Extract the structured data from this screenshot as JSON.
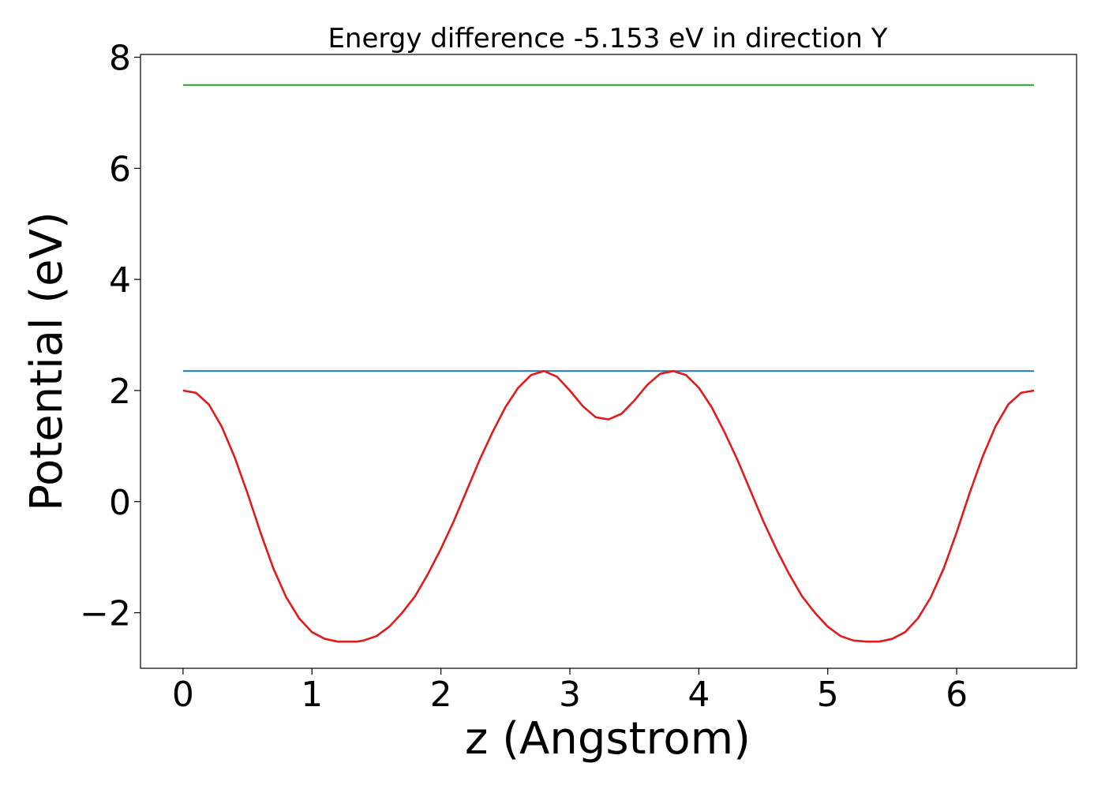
{
  "chart_data": {
    "type": "line",
    "title": "Energy difference -5.153 eV in direction Y",
    "xlabel": "z (Angstrom)",
    "ylabel": "Potential (eV)",
    "xlim": [
      -0.33,
      6.93
    ],
    "ylim": [
      -3.0,
      8.05
    ],
    "x_ticks": [
      0,
      1,
      2,
      3,
      4,
      5,
      6
    ],
    "x_tick_labels": [
      "0",
      "1",
      "2",
      "3",
      "4",
      "5",
      "6"
    ],
    "y_ticks": [
      -2,
      0,
      2,
      4,
      6,
      8
    ],
    "y_tick_labels": [
      "−2",
      "0",
      "2",
      "4",
      "6",
      "8"
    ],
    "grid": false,
    "legend": "none",
    "series": [
      {
        "color": "#2ca02c",
        "x": [
          0,
          6.6
        ],
        "y": [
          7.5,
          7.5
        ]
      },
      {
        "color": "#1f77b4",
        "x": [
          0,
          6.6
        ],
        "y": [
          2.35,
          2.35
        ]
      },
      {
        "color": "#e31a1c",
        "x": [
          0,
          0.1,
          0.2,
          0.3,
          0.4,
          0.5,
          0.6,
          0.7,
          0.8,
          0.9,
          1.0,
          1.1,
          1.2,
          1.3,
          1.35,
          1.4,
          1.5,
          1.6,
          1.7,
          1.8,
          1.9,
          2.0,
          2.1,
          2.2,
          2.3,
          2.4,
          2.5,
          2.6,
          2.7,
          2.8,
          2.9,
          3.0,
          3.1,
          3.2,
          3.3,
          3.4,
          3.5,
          3.6,
          3.7,
          3.8,
          3.9,
          4.0,
          4.1,
          4.2,
          4.3,
          4.4,
          4.5,
          4.6,
          4.7,
          4.8,
          4.9,
          5.0,
          5.1,
          5.2,
          5.3,
          5.35,
          5.4,
          5.5,
          5.6,
          5.7,
          5.8,
          5.9,
          6.0,
          6.1,
          6.2,
          6.3,
          6.4,
          6.5,
          6.6
        ],
        "y": [
          2.0,
          1.96,
          1.75,
          1.35,
          0.8,
          0.15,
          -0.55,
          -1.2,
          -1.72,
          -2.1,
          -2.35,
          -2.47,
          -2.52,
          -2.52,
          -2.52,
          -2.5,
          -2.42,
          -2.25,
          -2.0,
          -1.7,
          -1.3,
          -0.85,
          -0.35,
          0.2,
          0.75,
          1.25,
          1.7,
          2.05,
          2.28,
          2.35,
          2.25,
          2.0,
          1.72,
          1.52,
          1.48,
          1.58,
          1.82,
          2.1,
          2.3,
          2.35,
          2.28,
          2.05,
          1.7,
          1.25,
          0.75,
          0.2,
          -0.35,
          -0.85,
          -1.3,
          -1.7,
          -2.0,
          -2.25,
          -2.42,
          -2.5,
          -2.52,
          -2.52,
          -2.52,
          -2.47,
          -2.35,
          -2.1,
          -1.72,
          -1.2,
          -0.55,
          0.15,
          0.8,
          1.35,
          1.75,
          1.96,
          2.0
        ]
      }
    ]
  }
}
